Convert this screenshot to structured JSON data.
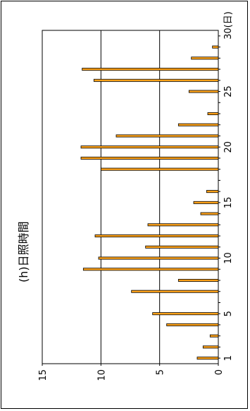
{
  "chart_data": {
    "type": "bar",
    "orientation": "rotated-90",
    "title": "(h)日照時間",
    "x": [
      1,
      2,
      3,
      4,
      5,
      6,
      7,
      8,
      9,
      10,
      11,
      12,
      13,
      14,
      15,
      16,
      17,
      18,
      19,
      20,
      21,
      22,
      23,
      24,
      25,
      26,
      27,
      28,
      29,
      30
    ],
    "values": [
      1.8,
      1.3,
      0.7,
      4.4,
      5.6,
      0,
      7.4,
      3.4,
      11.5,
      10.2,
      6.2,
      10.5,
      6,
      1.5,
      2.1,
      1,
      0,
      10,
      11.7,
      11.7,
      8.7,
      3.4,
      0.9,
      0,
      2.5,
      10.6,
      11.6,
      2.3,
      0.5,
      0
    ],
    "x_ticks": [
      "1",
      "5",
      "10",
      "15",
      "20",
      "25",
      "30(日)"
    ],
    "x_tick_values": [
      1,
      5,
      10,
      15,
      20,
      25,
      30
    ],
    "y_ticks": [
      "0",
      "5",
      "10",
      "15"
    ],
    "y_tick_values": [
      0,
      5,
      10,
      15
    ],
    "ylim": [
      0,
      15
    ],
    "xlim": [
      0.5,
      30.5
    ],
    "grid": true,
    "colors": {
      "bar": "#ffa31a",
      "bar_edge": "#000000",
      "grid": "#000000"
    }
  }
}
